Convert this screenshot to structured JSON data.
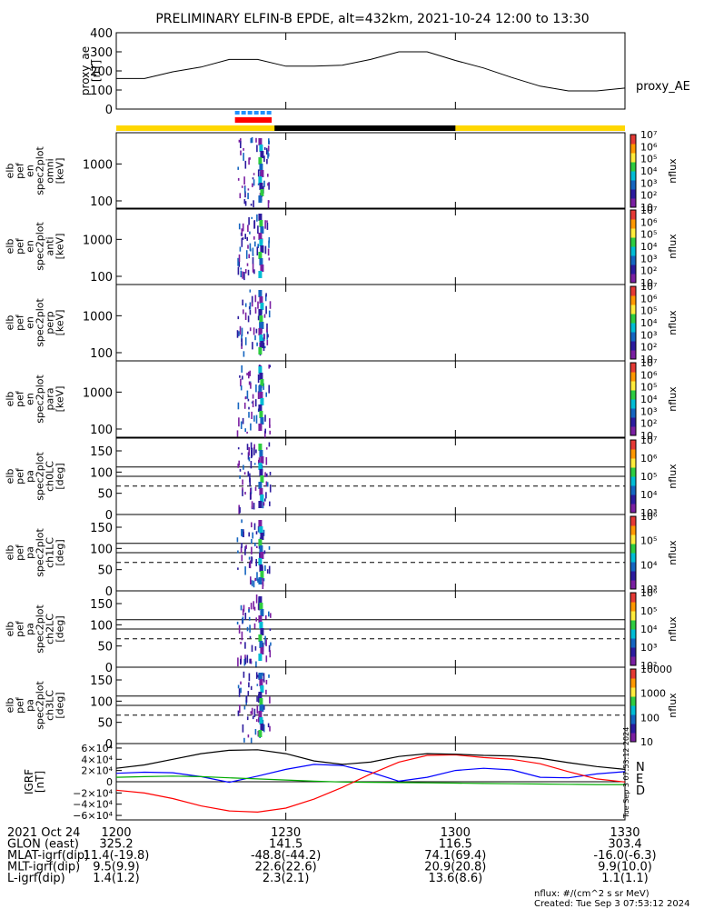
{
  "title": "PRELIMINARY ELFIN-B EPDE, alt=432km, 2021-10-24 12:00 to 13:30",
  "colors": {
    "ae": "#000000",
    "orbit_bar_yellow": "#ffd700",
    "orbit_bar_black": "#000000",
    "science_zone_red": "#ff0000",
    "science_zone_blue": "#1e90ff",
    "igrf_black": "#000000",
    "igrf_blue": "#0000ff",
    "igrf_red": "#ff0000",
    "igrf_green": "#00aa00"
  },
  "panels": [
    {
      "id": "ae",
      "ylabel": [
        "proxy_ae",
        "[nT]"
      ]
    },
    {
      "id": "omni",
      "ylabel": [
        "elb",
        "pef",
        "en",
        "spec2plot",
        "omni",
        "[keV]"
      ]
    },
    {
      "id": "anti",
      "ylabel": [
        "elb",
        "pef",
        "en",
        "spec2plot",
        "anti",
        "[keV]"
      ]
    },
    {
      "id": "perp",
      "ylabel": [
        "elb",
        "pef",
        "en",
        "spec2plot",
        "perp",
        "[keV]"
      ]
    },
    {
      "id": "para",
      "ylabel": [
        "elb",
        "pef",
        "en",
        "spec2plot",
        "para",
        "[keV]"
      ]
    },
    {
      "id": "ch0",
      "ylabel": [
        "elb",
        "pef",
        "pa",
        "spec2plot",
        "ch0LC",
        "[deg]"
      ]
    },
    {
      "id": "ch1",
      "ylabel": [
        "elb",
        "pef",
        "pa",
        "spec2plot",
        "ch1LC",
        "[deg]"
      ]
    },
    {
      "id": "ch2",
      "ylabel": [
        "elb",
        "pef",
        "pa",
        "spec2plot",
        "ch2LC",
        "[deg]"
      ]
    },
    {
      "id": "ch3",
      "ylabel": [
        "elb",
        "pef",
        "pa",
        "spec2plot",
        "ch3LC",
        "[deg]"
      ]
    },
    {
      "id": "igrf",
      "ylabel": [
        "IGRF",
        "[nT]"
      ]
    }
  ],
  "colorbars": [
    {
      "label": "nflux",
      "ticks": [
        "10",
        "10²",
        "10³",
        "10⁴",
        "10⁵",
        "10⁶",
        "10⁷"
      ]
    },
    {
      "label": "nflux",
      "ticks": [
        "10",
        "10²",
        "10³",
        "10⁴",
        "10⁵",
        "10⁶",
        "10⁷"
      ]
    },
    {
      "label": "nflux",
      "ticks": [
        "10",
        "10²",
        "10³",
        "10⁴",
        "10⁵",
        "10⁶",
        "10⁷"
      ]
    },
    {
      "label": "nflux",
      "ticks": [
        "10",
        "10²",
        "10³",
        "10⁴",
        "10⁵",
        "10⁶",
        "10⁷"
      ]
    },
    {
      "label": "nflux",
      "ticks": [
        "10³",
        "10⁴",
        "10⁵",
        "10⁶",
        "10⁷"
      ]
    },
    {
      "label": "nflux",
      "ticks": [
        "10³",
        "10⁴",
        "10⁵",
        "10⁶"
      ]
    },
    {
      "label": "nflux",
      "ticks": [
        "10²",
        "10³",
        "10⁴",
        "10⁵",
        "10⁶"
      ]
    },
    {
      "label": "nflux",
      "ticks": [
        "10",
        "100",
        "1000",
        "10000"
      ]
    }
  ],
  "igrf_legend": [
    "N",
    "E",
    "D"
  ],
  "chart_data": [
    {
      "type": "line",
      "name": "proxy_ae",
      "legend": "proxy_AE",
      "x": [
        0,
        5,
        10,
        15,
        20,
        25,
        30,
        35,
        40,
        45,
        50,
        55,
        60,
        65,
        70,
        75,
        80,
        85,
        90
      ],
      "values": [
        160,
        160,
        195,
        220,
        260,
        260,
        225,
        225,
        230,
        260,
        300,
        300,
        255,
        215,
        165,
        120,
        95,
        95,
        110
      ],
      "ylim": [
        0,
        400
      ],
      "yticks": [
        0,
        100,
        200,
        300,
        400
      ]
    },
    {
      "type": "heatmap",
      "name": "en omni",
      "yticks": [
        "100",
        "1000"
      ],
      "yrange_keV": [
        60,
        7000
      ],
      "scale": "log"
    },
    {
      "type": "heatmap",
      "name": "en anti",
      "yticks": [
        "100",
        "1000"
      ],
      "yrange_keV": [
        60,
        7000
      ],
      "scale": "log"
    },
    {
      "type": "heatmap",
      "name": "en perp",
      "yticks": [
        "100",
        "1000"
      ],
      "yrange_keV": [
        60,
        7000
      ],
      "scale": "log"
    },
    {
      "type": "heatmap",
      "name": "en para",
      "yticks": [
        "100",
        "1000"
      ],
      "yrange_keV": [
        60,
        7000
      ],
      "scale": "log"
    },
    {
      "type": "heatmap",
      "name": "pa ch0LC",
      "yticks": [
        "0",
        "50",
        "100",
        "150"
      ],
      "ylim": [
        0,
        180
      ],
      "ref_lines": [
        90,
        112
      ],
      "dashed_line": 67
    },
    {
      "type": "heatmap",
      "name": "pa ch1LC",
      "yticks": [
        "0",
        "50",
        "100",
        "150"
      ],
      "ylim": [
        0,
        180
      ],
      "ref_lines": [
        90,
        112
      ],
      "dashed_line": 67
    },
    {
      "type": "heatmap",
      "name": "pa ch2LC",
      "yticks": [
        "0",
        "50",
        "100",
        "150"
      ],
      "ylim": [
        0,
        180
      ],
      "ref_lines": [
        90,
        112
      ],
      "dashed_line": 67
    },
    {
      "type": "heatmap",
      "name": "pa ch3LC",
      "yticks": [
        "0",
        "50",
        "100",
        "150"
      ],
      "ylim": [
        0,
        180
      ],
      "ref_lines": [
        90,
        112
      ],
      "dashed_line": 67
    },
    {
      "type": "line",
      "name": "IGRF",
      "yticks": [
        "6×10⁴",
        "4×10⁴",
        "2×10⁴",
        "0",
        "−2×10⁴",
        "−4×10⁴",
        "−6×10⁴"
      ],
      "ylim": [
        -68000,
        68000
      ],
      "x": [
        0,
        5,
        10,
        15,
        20,
        25,
        30,
        35,
        40,
        45,
        50,
        55,
        60,
        65,
        70,
        75,
        80,
        85,
        90
      ],
      "series": [
        {
          "name": "N",
          "values": [
            15000,
            17000,
            16000,
            9000,
            -1000,
            10000,
            22000,
            31000,
            29000,
            17000,
            1000,
            8000,
            20000,
            24000,
            21000,
            8000,
            7000,
            14000,
            18000
          ]
        },
        {
          "name": "E",
          "values": [
            8000,
            9000,
            10000,
            9000,
            7000,
            5000,
            3000,
            1000,
            -500,
            -1000,
            -1500,
            -2000,
            -2500,
            -3000,
            -3500,
            -4000,
            -4500,
            -5000,
            -5000
          ]
        },
        {
          "name": "D",
          "values": [
            -15000,
            -20000,
            -30000,
            -43000,
            -52000,
            -54000,
            -47000,
            -31000,
            -10000,
            14000,
            35000,
            47000,
            48000,
            43000,
            40000,
            32000,
            18000,
            5000,
            -500
          ]
        },
        {
          "name": "|B|",
          "values": [
            24000,
            30000,
            40000,
            50000,
            56000,
            57000,
            50000,
            37000,
            31000,
            35000,
            45000,
            50000,
            49000,
            47000,
            46000,
            42000,
            34000,
            27000,
            22000
          ]
        }
      ]
    }
  ],
  "xaxis": {
    "ticks": [
      {
        "t": 0,
        "label": "1200"
      },
      {
        "t": 30,
        "label": "1230"
      },
      {
        "t": 60,
        "label": "1300"
      },
      {
        "t": 90,
        "label": "1330"
      }
    ],
    "rows": [
      {
        "label": "2021 Oct 24",
        "values": [
          "325.2",
          "141.5",
          "116.5",
          "303.4"
        ]
      },
      {
        "label": "GLON (east)",
        "values": [
          "",
          "",
          "",
          ""
        ]
      },
      {
        "label": "MLAT-igrf(dip)",
        "values": [
          "11.4(-19.8)",
          "-48.8(-44.2)",
          "74.1(69.4)",
          "-16.0(-6.3)"
        ]
      },
      {
        "label": "MLT-igrf(dip)",
        "values": [
          "9.5(9.9)",
          "22.6(22.6)",
          "20.9(20.8)",
          "9.9(10.0)"
        ]
      },
      {
        "label": "L-igrf(dip)",
        "values": [
          "1.4(1.2)",
          "2.3(2.1)",
          "13.6(8.6)",
          "1.1(1.1)"
        ]
      }
    ]
  },
  "footer": {
    "units": "nflux: #/(cm^2 s sr MeV)",
    "created": "Created: Tue Sep  3 07:53:12 2024",
    "side_stamp": "Tue Sep  3 07:53:12 2024"
  }
}
